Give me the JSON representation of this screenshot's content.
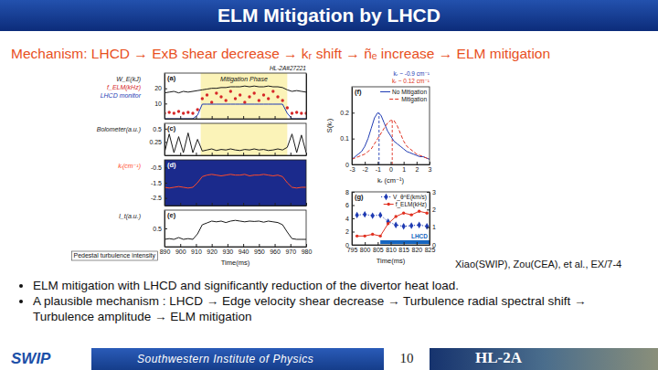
{
  "slide": {
    "title": "ELM Mitigation by LHCD",
    "mechanism": "Mechanism: LHCD → ExB shear decrease → kᵣ shift → ñₑ increase → ELM mitigation",
    "bullets": [
      "ELM mitigation with LHCD and significantly reduction of the divertor heat load.",
      "A plausible mechanism : LHCD → Edge velocity shear decrease → Turbulence radial spectral shift → Turbulence amplitude → ELM mitigation"
    ],
    "citation": "Xiao(SWIP), Zou(CEA), et al., EX/7-4",
    "footer": {
      "org": "SWIP",
      "institute": "Southwestern Institute of Physics",
      "page": "10",
      "device": "HL-2A"
    }
  },
  "chart_data": [
    {
      "type": "line",
      "label": "(a)",
      "annotation": "HL-2A#27221",
      "span": [
        913,
        968
      ],
      "span_label": "Mitigation Phase",
      "x": [
        890,
        893,
        896,
        899,
        902,
        905,
        908,
        911,
        914,
        917,
        920,
        923,
        926,
        929,
        932,
        935,
        938,
        941,
        944,
        947,
        950,
        953,
        956,
        959,
        962,
        965,
        968,
        971,
        974,
        977,
        980
      ],
      "xlim": [
        890,
        980
      ],
      "xticks": [
        890,
        900,
        910,
        920,
        930,
        940,
        950,
        960,
        970,
        980
      ],
      "ylim": [
        0,
        30
      ],
      "yticks": [
        10,
        20
      ],
      "y2lim": [
        0,
        2.5
      ],
      "tick_labels": "y",
      "legend": "left",
      "series": [
        {
          "name": "W_E(kJ)",
          "color": "#1a1a1a",
          "line_style": "solid",
          "values": [
            17,
            17.5,
            18,
            17,
            18,
            17.5,
            18,
            18.5,
            19,
            19.5,
            20,
            20,
            20.5,
            20.5,
            21,
            21,
            21,
            21.5,
            21,
            21.5,
            21,
            21,
            21.5,
            21,
            21,
            20.5,
            19,
            18,
            18.5,
            18,
            17.5
          ]
        },
        {
          "name": "f_ELM(kHz)",
          "type": "scatter",
          "axis": "y2",
          "color": "#d62728",
          "marker": "circle",
          "values": [
            0.3,
            0.35,
            0.3,
            0.4,
            0.3,
            0.35,
            0.3,
            0.5,
            1.1,
            1.3,
            0.9,
            1.4,
            1.2,
            1.0,
            1.5,
            1.1,
            1.3,
            0.9,
            1.2,
            1.4,
            1.0,
            1.3,
            1.1,
            1.5,
            1.2,
            1.0,
            0.6,
            0.3,
            0.35,
            0.3,
            0.3
          ]
        },
        {
          "name": "LHCD monitor",
          "axis": "y2",
          "color": "#1f3bb3",
          "line_style": "solid",
          "values": [
            0,
            0,
            0,
            0,
            0,
            0,
            0,
            0.2,
            0.8,
            0.8,
            0.8,
            0.8,
            0.8,
            0.8,
            0.8,
            0.8,
            0.8,
            0.8,
            0.8,
            0.8,
            0.8,
            0.8,
            0.8,
            0.8,
            0.8,
            0.8,
            0.3,
            0,
            0,
            0,
            0
          ]
        }
      ]
    },
    {
      "type": "line",
      "label": "(c)",
      "span": [
        913,
        968
      ],
      "x": [
        890,
        893,
        896,
        899,
        902,
        905,
        908,
        911,
        914,
        917,
        920,
        923,
        926,
        929,
        932,
        935,
        938,
        941,
        944,
        947,
        950,
        953,
        956,
        959,
        962,
        965,
        968,
        971,
        974,
        977,
        980
      ],
      "xlim": [
        890,
        980
      ],
      "xticks": [
        890,
        900,
        910,
        920,
        930,
        940,
        950,
        960,
        970,
        980
      ],
      "ylim": [
        0,
        0.6
      ],
      "yticks": [
        0.25,
        0.5
      ],
      "tick_labels": "y",
      "legend": "left",
      "series": [
        {
          "name": "Bolometer(a.u.)",
          "color": "#1a1a1a",
          "line_style": "solid",
          "values": [
            0.05,
            0.4,
            0.05,
            0.35,
            0.05,
            0.42,
            0.05,
            0.3,
            0.08,
            0.1,
            0.12,
            0.09,
            0.11,
            0.1,
            0.12,
            0.1,
            0.09,
            0.11,
            0.1,
            0.12,
            0.1,
            0.11,
            0.09,
            0.1,
            0.12,
            0.1,
            0.15,
            0.4,
            0.05,
            0.38,
            0.05
          ]
        }
      ]
    },
    {
      "type": "line",
      "label": "(d)",
      "x": [
        890,
        893,
        896,
        899,
        902,
        905,
        908,
        911,
        914,
        917,
        920,
        923,
        926,
        929,
        932,
        935,
        938,
        941,
        944,
        947,
        950,
        953,
        956,
        959,
        962,
        965,
        968,
        971,
        974,
        977,
        980
      ],
      "xlim": [
        890,
        980
      ],
      "xticks": [
        890,
        900,
        910,
        920,
        930,
        940,
        950,
        960,
        970,
        980
      ],
      "ylim": [
        -3,
        0
      ],
      "yticks": [
        -2.5,
        -1.5,
        -0.5
      ],
      "tick_labels": "y",
      "legend": "left",
      "series": [
        {
          "name": "kᵣ(cm⁻¹)",
          "color": "#ff4a2a",
          "line_style": "solid",
          "values": [
            -1.8,
            -1.85,
            -1.8,
            -1.75,
            -1.8,
            -1.85,
            -1.8,
            -1.5,
            -1.1,
            -1.0,
            -0.95,
            -1.0,
            -1.05,
            -1.0,
            -0.95,
            -1.0,
            -1.0,
            -0.95,
            -1.05,
            -1.0,
            -1.0,
            -0.95,
            -1.0,
            -1.05,
            -1.0,
            -1.1,
            -1.5,
            -1.8,
            -1.85,
            -1.8,
            -1.8
          ]
        }
      ]
    },
    {
      "type": "line",
      "label": "(e)",
      "annotation": "Pedestal turbulence intensity",
      "x_label": "Time(ms)",
      "x": [
        890,
        893,
        896,
        899,
        902,
        905,
        908,
        911,
        914,
        917,
        920,
        923,
        926,
        929,
        932,
        935,
        938,
        941,
        944,
        947,
        950,
        953,
        956,
        959,
        962,
        965,
        968,
        971,
        974,
        977,
        980
      ],
      "xlim": [
        890,
        980
      ],
      "xticks": [
        890,
        900,
        910,
        920,
        930,
        940,
        950,
        960,
        970,
        980
      ],
      "ylim": [
        0,
        1
      ],
      "yticks": [
        0.5
      ],
      "legend": "left",
      "series": [
        {
          "name": "I_t(a.u.)",
          "color": "#1a1a1a",
          "line_style": "solid",
          "values": [
            0.2,
            0.22,
            0.2,
            0.25,
            0.2,
            0.22,
            0.2,
            0.35,
            0.6,
            0.65,
            0.7,
            0.68,
            0.7,
            0.66,
            0.7,
            0.72,
            0.7,
            0.68,
            0.7,
            0.69,
            0.7,
            0.67,
            0.7,
            0.68,
            0.66,
            0.6,
            0.4,
            0.22,
            0.2,
            0.2,
            0.2
          ]
        }
      ]
    },
    {
      "type": "line",
      "label": "(f)",
      "x_label": "kᵣ (cm⁻¹)",
      "y_label": "S(kᵣ)",
      "x": [
        -3,
        -2.75,
        -2.5,
        -2.25,
        -2,
        -1.75,
        -1.5,
        -1.25,
        -1,
        -0.75,
        -0.5,
        -0.25,
        0,
        0.25,
        0.5,
        0.75,
        1,
        1.25,
        1.5,
        1.75,
        2,
        2.25,
        2.5,
        2.75,
        3
      ],
      "xlim": [
        -3,
        3
      ],
      "xticks": [
        -3,
        -2,
        -1,
        0,
        1,
        2,
        3
      ],
      "ylim": [
        0,
        0.3
      ],
      "yticks": [
        0,
        0.1,
        0.2
      ],
      "legend": "upper right",
      "annotations": [
        {
          "text": "kᵣ ~ -0.9 cm⁻¹",
          "x": -0.9,
          "y": 0.2,
          "color": "#1f3bb3"
        },
        {
          "text": "kᵣ ~ 0.12 cm⁻¹",
          "x": 0.12,
          "y": 0.17,
          "color": "#e03020"
        }
      ],
      "series": [
        {
          "name": "No Mitigation",
          "color": "#1f3bb3",
          "line_style": "solid",
          "values": [
            0.02,
            0.03,
            0.04,
            0.05,
            0.07,
            0.1,
            0.14,
            0.18,
            0.2,
            0.19,
            0.16,
            0.13,
            0.11,
            0.09,
            0.08,
            0.07,
            0.06,
            0.05,
            0.045,
            0.04,
            0.035,
            0.03,
            0.03,
            0.025,
            0.02
          ]
        },
        {
          "name": "Mitigation",
          "color": "#e03020",
          "line_style": "dashed",
          "values": [
            0.02,
            0.025,
            0.03,
            0.035,
            0.04,
            0.05,
            0.06,
            0.08,
            0.1,
            0.12,
            0.14,
            0.16,
            0.17,
            0.17,
            0.15,
            0.12,
            0.09,
            0.07,
            0.06,
            0.05,
            0.04,
            0.035,
            0.03,
            0.025,
            0.02
          ]
        }
      ]
    },
    {
      "type": "line",
      "label": "(g)",
      "x_label": "Time(ms)",
      "bar_span": [
        806,
        825
      ],
      "bar_label": "LHCD",
      "x": [
        797,
        800,
        803,
        806,
        809,
        812,
        815,
        818,
        821,
        824
      ],
      "xlim": [
        795,
        825
      ],
      "xticks": [
        795,
        800,
        805,
        810,
        815,
        820,
        825
      ],
      "ylim": [
        0,
        8
      ],
      "yticks": [
        0,
        2,
        4,
        6,
        8
      ],
      "y2lim": [
        0,
        3
      ],
      "y2ticks": [
        0,
        1,
        2,
        3
      ],
      "legend": "upper right",
      "series": [
        {
          "name": "V_θ^E(km/s)",
          "color": "#1f3bb3",
          "marker": "diamond",
          "line_style": "dotted",
          "values": [
            4.5,
            4.6,
            4.4,
            4.5,
            3.5,
            3.0,
            2.8,
            2.9,
            3.0,
            2.8
          ]
        },
        {
          "name": "f_ELM(kHz)",
          "axis": "y2",
          "color": "#e03020",
          "marker": "circle",
          "line_style": "solid",
          "values": [
            0.5,
            0.5,
            0.6,
            0.5,
            1.2,
            1.6,
            1.8,
            1.7,
            1.9,
            1.8
          ]
        }
      ]
    }
  ]
}
